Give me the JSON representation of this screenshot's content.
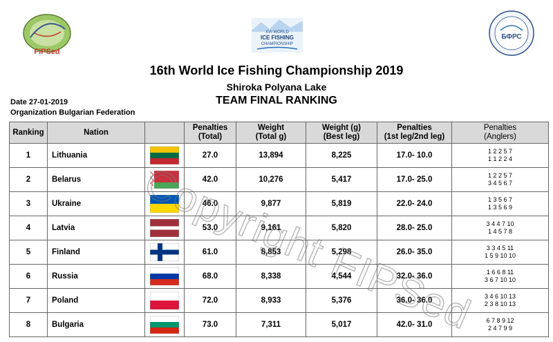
{
  "header": {
    "title": "16th World Ice Fishing Championship 2019",
    "location": "Shiroka Polyana Lake",
    "subtitle": "TEAM FINAL RANKING",
    "date_label": "Date",
    "date": "27-01-2019",
    "organization_label": "Organization",
    "organization": "Bulgarian Federation"
  },
  "logos": {
    "left_text": "FIPSed",
    "center_line1": "XVI WORLD",
    "center_line2": "ICE FISHING",
    "center_line3": "CHAMPIONSHIP",
    "right_text": "БФРС"
  },
  "table": {
    "headers": {
      "ranking": "Ranking",
      "nation": "Nation",
      "penalties_total_1": "Penalties",
      "penalties_total_2": "(Total)",
      "weight_1": "Weight",
      "weight_2": "(Total g)",
      "best_1": "Weight (g)",
      "best_2": "(Best leg)",
      "legs_1": "Penalties",
      "legs_2": "(1st leg/2nd leg)",
      "anglers_1": "Penalties",
      "anglers_2": "(Anglers)"
    },
    "rows": [
      {
        "rank": "1",
        "nation": "Lithuania",
        "flag": "lithuania",
        "penalties": "27.0",
        "weight": "13,894",
        "best": "8,225",
        "legs": "17.0- 10.0",
        "anglers1": "1 2 2 5 7",
        "anglers2": "1 1 2 2 4"
      },
      {
        "rank": "2",
        "nation": "Belarus",
        "flag": "belarus",
        "penalties": "42.0",
        "weight": "10,276",
        "best": "5,417",
        "legs": "17.0- 25.0",
        "anglers1": "1 2 2 5 7",
        "anglers2": "3 4 5 6 7"
      },
      {
        "rank": "3",
        "nation": "Ukraine",
        "flag": "ukraine",
        "penalties": "46.0",
        "weight": "9,877",
        "best": "5,819",
        "legs": "22.0- 24.0",
        "anglers1": "1 3 5 6 7",
        "anglers2": "1 3 5 6 9"
      },
      {
        "rank": "4",
        "nation": "Latvia",
        "flag": "latvia",
        "penalties": "53.0",
        "weight": "9,161",
        "best": "5,820",
        "legs": "28.0- 25.0",
        "anglers1": "3 4 4 7 10",
        "anglers2": "1 4 5 7 8"
      },
      {
        "rank": "5",
        "nation": "Finland",
        "flag": "finland",
        "penalties": "61.0",
        "weight": "8,853",
        "best": "5,298",
        "legs": "26.0- 35.0",
        "anglers1": "3 3 4 5 11",
        "anglers2": "1 5 9 10 10"
      },
      {
        "rank": "6",
        "nation": "Russia",
        "flag": "russia",
        "penalties": "68.0",
        "weight": "8,338",
        "best": "4,544",
        "legs": "32.0- 36.0",
        "anglers1": "1 6 6 8 11",
        "anglers2": "3 6 7 10 10"
      },
      {
        "rank": "7",
        "nation": "Poland",
        "flag": "poland",
        "penalties": "72.0",
        "weight": "8,933",
        "best": "5,376",
        "legs": "36.0- 36.0",
        "anglers1": "3 4 6 10 13",
        "anglers2": "2 3 8 10 13"
      },
      {
        "rank": "8",
        "nation": "Bulgaria",
        "flag": "bulgaria",
        "penalties": "73.0",
        "weight": "7,311",
        "best": "5,017",
        "legs": "42.0- 31.0",
        "anglers1": "6 7 8 9 12",
        "anglers2": "2 4 7 9 9"
      }
    ]
  },
  "watermark": "Copyright FIPSed"
}
